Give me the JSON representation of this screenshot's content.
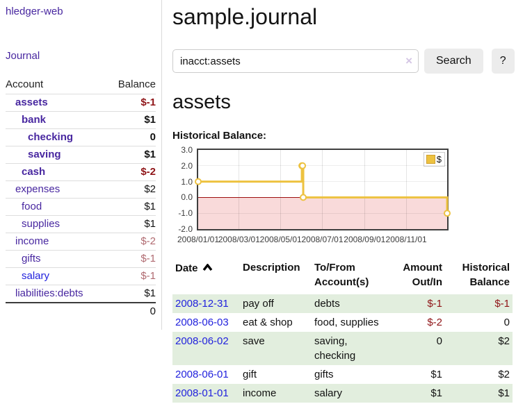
{
  "colors": {
    "link_purple": "#4827a0",
    "link_blue": "#2222dd",
    "negative_strong": "#8f1417",
    "negative_soft": "#b06a70",
    "row_green": "#e2eede",
    "series_gold": "#edc240"
  },
  "app": {
    "title": "hledger-web",
    "nav_journal": "Journal"
  },
  "sidebar": {
    "table": {
      "col_account": "Account",
      "col_balance": "Balance",
      "rows": [
        {
          "name": "assets",
          "balance": "$-1",
          "level": 1,
          "bold": true,
          "neg": "strong"
        },
        {
          "name": "bank",
          "balance": "$1",
          "level": 2,
          "bold": true,
          "neg": "none"
        },
        {
          "name": "checking",
          "balance": "0",
          "level": 3,
          "bold": true,
          "neg": "none"
        },
        {
          "name": "saving",
          "balance": "$1",
          "level": 3,
          "bold": true,
          "neg": "none"
        },
        {
          "name": "cash",
          "balance": "$-2",
          "level": 2,
          "bold": true,
          "neg": "strong"
        },
        {
          "name": "expenses",
          "balance": "$2",
          "level": 1,
          "bold": false,
          "neg": "none"
        },
        {
          "name": "food",
          "balance": "$1",
          "level": 2,
          "bold": false,
          "neg": "none"
        },
        {
          "name": "supplies",
          "balance": "$1",
          "level": 2,
          "bold": false,
          "neg": "none"
        },
        {
          "name": "income",
          "balance": "$-2",
          "level": 1,
          "bold": false,
          "neg": "soft"
        },
        {
          "name": "gifts",
          "balance": "$-1",
          "level": 2,
          "bold": false,
          "neg": "soft"
        },
        {
          "name": "salary",
          "balance": "$-1",
          "level": 2,
          "bold": false,
          "neg": "soft",
          "blue": true
        },
        {
          "name": "liabilities:debts",
          "balance": "$1",
          "level": 1,
          "bold": false,
          "neg": "none"
        }
      ],
      "total": "0"
    }
  },
  "header": {
    "title": "sample.journal"
  },
  "search": {
    "value": "inacct:assets",
    "clear_icon": "×",
    "button": "Search",
    "help_button": "?"
  },
  "account_page": {
    "heading": "assets",
    "chart_label": "Historical Balance:"
  },
  "chart_data": {
    "type": "line",
    "step": true,
    "title": "Historical Balance:",
    "series": [
      {
        "name": "$",
        "color": "#edc240",
        "points": [
          {
            "date": "2008-01-01",
            "value": 1
          },
          {
            "date": "2008-06-01",
            "value": 2
          },
          {
            "date": "2008-06-02",
            "value": 2
          },
          {
            "date": "2008-06-03",
            "value": 0
          },
          {
            "date": "2008-12-31",
            "value": -1
          }
        ]
      }
    ],
    "x_range": [
      "2008-01-01",
      "2008-12-31"
    ],
    "y_range": [
      -2,
      3
    ],
    "x_ticks": [
      {
        "date": "2008-01-01",
        "label": "2008/01/01"
      },
      {
        "date": "2008-03-01",
        "label": "2008/03/01"
      },
      {
        "date": "2008-05-01",
        "label": "2008/05/01"
      },
      {
        "date": "2008-07-01",
        "label": "2008/07/01"
      },
      {
        "date": "2008-09-01",
        "label": "2008/09/01"
      },
      {
        "date": "2008-11-01",
        "label": "2008/11/01"
      }
    ],
    "y_ticks": [
      "3.0",
      "2.0",
      "1.0",
      "0.0",
      "-1.0",
      "-2.0"
    ],
    "grid": true,
    "legend_position": "top-right",
    "negative_region_color": "#f9dada",
    "zero_line_color": "#9c0f0f",
    "xlabel": "",
    "ylabel": ""
  },
  "register": {
    "columns": [
      {
        "lines": [
          "Date"
        ],
        "align": "left",
        "sorted_asc": true
      },
      {
        "lines": [
          "Description"
        ],
        "align": "left"
      },
      {
        "lines": [
          "To/From",
          "Account(s)"
        ],
        "align": "left"
      },
      {
        "lines": [
          "Amount",
          "Out/In"
        ],
        "align": "right"
      },
      {
        "lines": [
          "Historical",
          "Balance"
        ],
        "align": "right"
      }
    ],
    "rows": [
      {
        "date": "2008-12-31",
        "description": "pay off",
        "accounts": "debts",
        "amount": "$-1",
        "amount_negative": true,
        "balance": "$-1",
        "balance_negative": true
      },
      {
        "date": "2008-06-03",
        "description": "eat & shop",
        "accounts": "food, supplies",
        "amount": "$-2",
        "amount_negative": true,
        "balance": "0",
        "balance_negative": false
      },
      {
        "date": "2008-06-02",
        "description": "save",
        "accounts": "saving, checking",
        "amount": "0",
        "amount_negative": false,
        "balance": "$2",
        "balance_negative": false
      },
      {
        "date": "2008-06-01",
        "description": "gift",
        "accounts": "gifts",
        "amount": "$1",
        "amount_negative": false,
        "balance": "$2",
        "balance_negative": false
      },
      {
        "date": "2008-01-01",
        "description": "income",
        "accounts": "salary",
        "amount": "$1",
        "amount_negative": false,
        "balance": "$1",
        "balance_negative": false
      }
    ]
  }
}
